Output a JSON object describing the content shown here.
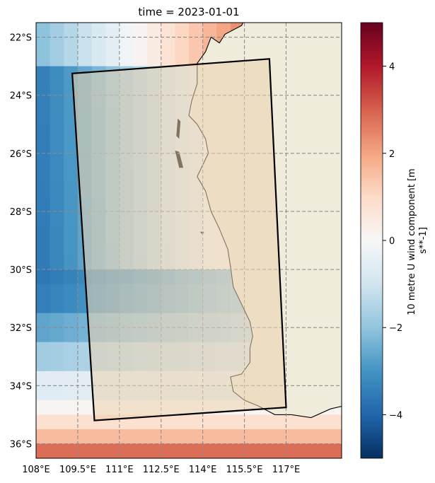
{
  "title": "time = 2023-01-01",
  "map": {
    "lon_range": [
      108,
      119
    ],
    "lat_range": [
      -36.5,
      -21.5
    ],
    "grid_lon": [
      108,
      109.5,
      111,
      112.5,
      114,
      115.5,
      117
    ],
    "grid_lat": [
      -22,
      -24,
      -26,
      -28,
      -30,
      -32,
      -34,
      -36
    ],
    "lon_labels": [
      "108°E",
      "109.5°E",
      "111°E",
      "112.5°E",
      "114°E",
      "115.5°E",
      "117°E"
    ],
    "lat_labels": [
      "22°S",
      "24°S",
      "26°S",
      "28°S",
      "30°S",
      "32°S",
      "34°S",
      "36°S"
    ],
    "land_color": "#efecdc",
    "boundary_polygon": [
      [
        109.3,
        -23.25
      ],
      [
        116.4,
        -22.75
      ],
      [
        117.0,
        -34.75
      ],
      [
        110.1,
        -35.2
      ]
    ],
    "colors": {
      "neg": "#2166ac",
      "pos": "#b2182b",
      "white": "#f7f7f7"
    }
  },
  "colorbar": {
    "label": "10 metre U wind component [m s**-1]",
    "label_lines": [
      "10 metre U wind component [m",
      "s**-1]"
    ],
    "range": [
      -5,
      5
    ],
    "ticks": [
      -4,
      -2,
      0,
      2,
      4
    ],
    "tick_labels": [
      "−4",
      "−2",
      "0",
      "2",
      "4"
    ]
  }
}
